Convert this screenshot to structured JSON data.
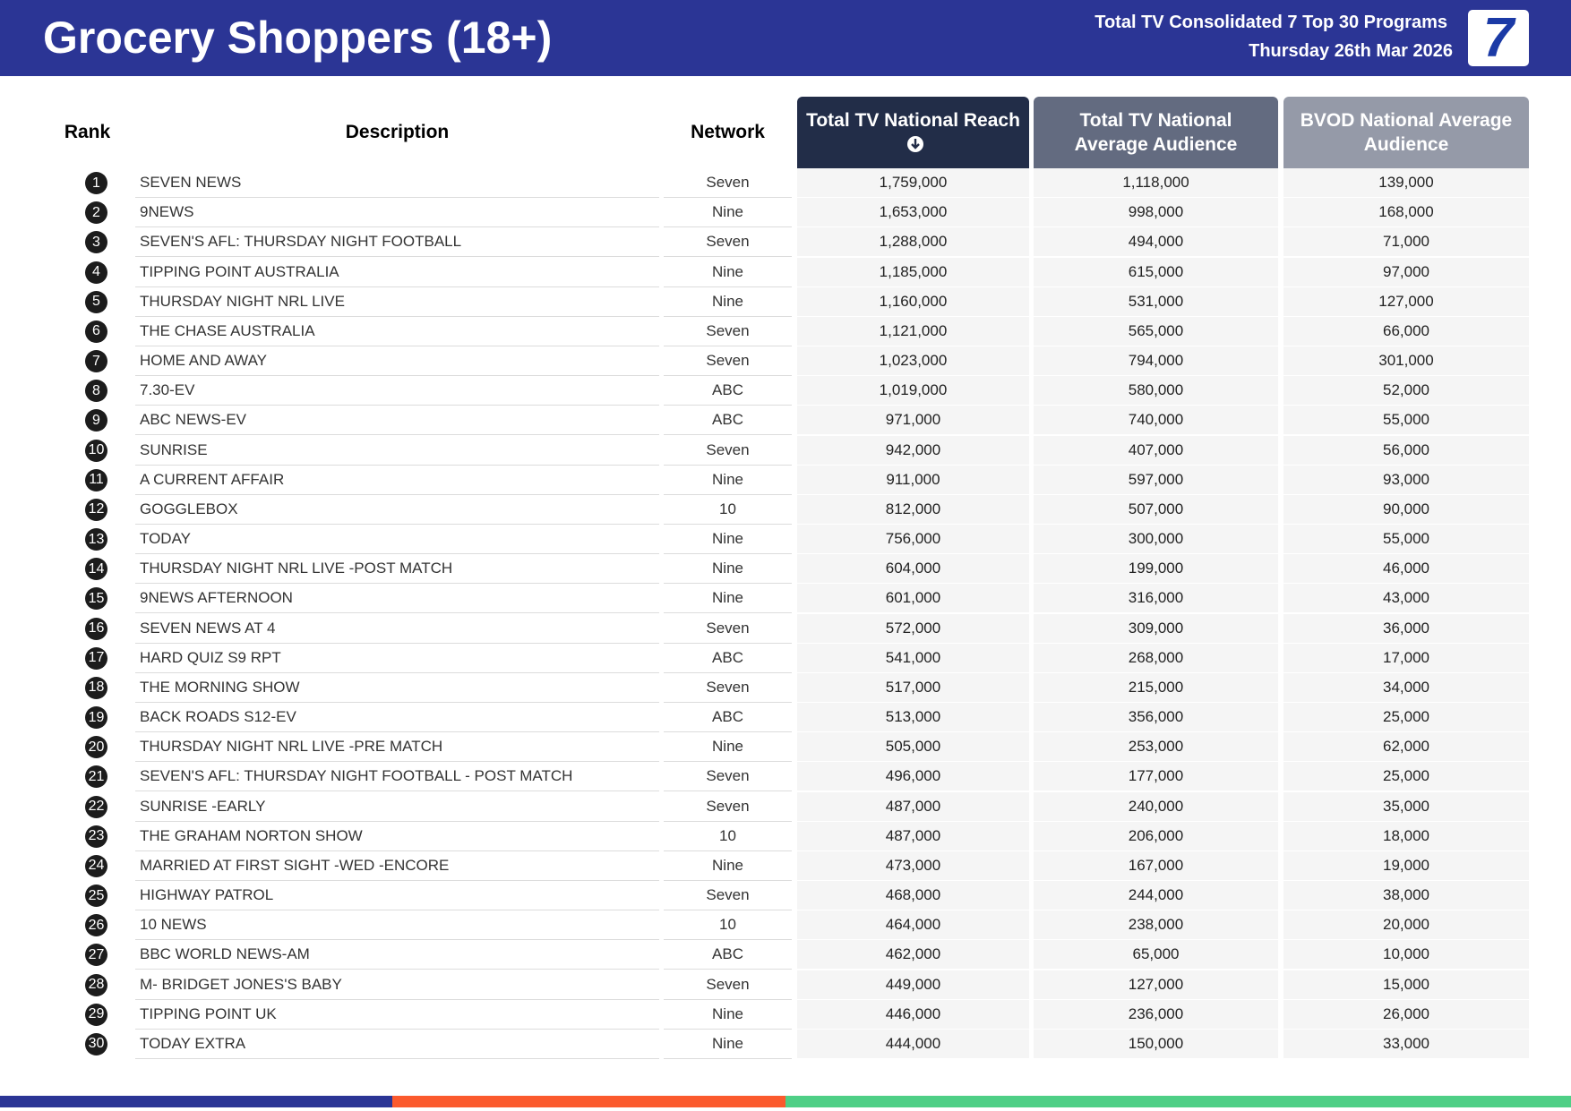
{
  "header": {
    "title": "Grocery Shoppers (18+)",
    "subtitle": [
      "Total TV Consolidated 7 Top 30 Programs",
      "Thursday 26th Mar 2026"
    ],
    "logo": "7"
  },
  "table": {
    "columns": [
      "Rank",
      "Description",
      "Network",
      "Total TV National Reach",
      "Total TV National Average Audience",
      "BVOD National Average Audience"
    ],
    "rows": [
      [
        "1",
        "SEVEN NEWS",
        "Seven",
        "1,759,000",
        "1,118,000",
        "139,000"
      ],
      [
        "2",
        "9NEWS",
        "Nine",
        "1,653,000",
        "998,000",
        "168,000"
      ],
      [
        "3",
        "SEVEN'S AFL: THURSDAY NIGHT FOOTBALL",
        "Seven",
        "1,288,000",
        "494,000",
        "71,000"
      ],
      [
        "4",
        "TIPPING POINT AUSTRALIA",
        "Nine",
        "1,185,000",
        "615,000",
        "97,000"
      ],
      [
        "5",
        "THURSDAY NIGHT NRL LIVE",
        "Nine",
        "1,160,000",
        "531,000",
        "127,000"
      ],
      [
        "6",
        "THE CHASE AUSTRALIA",
        "Seven",
        "1,121,000",
        "565,000",
        "66,000"
      ],
      [
        "7",
        "HOME AND AWAY",
        "Seven",
        "1,023,000",
        "794,000",
        "301,000"
      ],
      [
        "8",
        "7.30-EV",
        "ABC",
        "1,019,000",
        "580,000",
        "52,000"
      ],
      [
        "9",
        "ABC NEWS-EV",
        "ABC",
        "971,000",
        "740,000",
        "55,000"
      ],
      [
        "10",
        "SUNRISE",
        "Seven",
        "942,000",
        "407,000",
        "56,000"
      ],
      [
        "11",
        "A CURRENT AFFAIR",
        "Nine",
        "911,000",
        "597,000",
        "93,000"
      ],
      [
        "12",
        "GOGGLEBOX",
        "10",
        "812,000",
        "507,000",
        "90,000"
      ],
      [
        "13",
        "TODAY",
        "Nine",
        "756,000",
        "300,000",
        "55,000"
      ],
      [
        "14",
        "THURSDAY NIGHT NRL LIVE -POST MATCH",
        "Nine",
        "604,000",
        "199,000",
        "46,000"
      ],
      [
        "15",
        "9NEWS AFTERNOON",
        "Nine",
        "601,000",
        "316,000",
        "43,000"
      ],
      [
        "16",
        "SEVEN NEWS AT 4",
        "Seven",
        "572,000",
        "309,000",
        "36,000"
      ],
      [
        "17",
        "HARD QUIZ S9 RPT",
        "ABC",
        "541,000",
        "268,000",
        "17,000"
      ],
      [
        "18",
        "THE MORNING SHOW",
        "Seven",
        "517,000",
        "215,000",
        "34,000"
      ],
      [
        "19",
        "BACK ROADS S12-EV",
        "ABC",
        "513,000",
        "356,000",
        "25,000"
      ],
      [
        "20",
        "THURSDAY NIGHT NRL LIVE -PRE MATCH",
        "Nine",
        "505,000",
        "253,000",
        "62,000"
      ],
      [
        "21",
        "SEVEN'S AFL: THURSDAY NIGHT FOOTBALL - POST MATCH",
        "Seven",
        "496,000",
        "177,000",
        "25,000"
      ],
      [
        "22",
        "SUNRISE -EARLY",
        "Seven",
        "487,000",
        "240,000",
        "35,000"
      ],
      [
        "23",
        "THE GRAHAM NORTON SHOW",
        "10",
        "487,000",
        "206,000",
        "18,000"
      ],
      [
        "24",
        "MARRIED AT FIRST SIGHT -WED -ENCORE",
        "Nine",
        "473,000",
        "167,000",
        "19,000"
      ],
      [
        "25",
        "HIGHWAY PATROL",
        "Seven",
        "468,000",
        "244,000",
        "38,000"
      ],
      [
        "26",
        "10 NEWS",
        "10",
        "464,000",
        "238,000",
        "20,000"
      ],
      [
        "27",
        "BBC WORLD NEWS-AM",
        "ABC",
        "462,000",
        "65,000",
        "10,000"
      ],
      [
        "28",
        "M- BRIDGET JONES'S BABY",
        "Seven",
        "449,000",
        "127,000",
        "15,000"
      ],
      [
        "29",
        "TIPPING POINT UK",
        "Nine",
        "446,000",
        "236,000",
        "26,000"
      ],
      [
        "30",
        "TODAY EXTRA",
        "Nine",
        "444,000",
        "150,000",
        "33,000"
      ]
    ]
  }
}
